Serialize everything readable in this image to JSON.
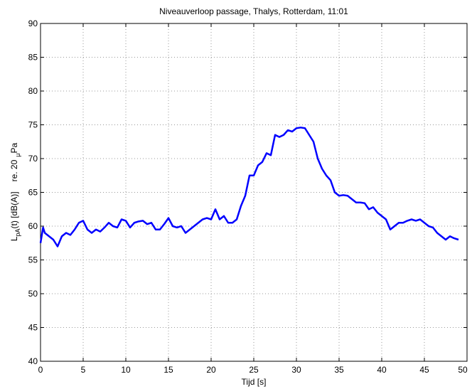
{
  "chart_data": {
    "type": "line",
    "title": "Niveauverloop passage, Thalys, Rotterdam, 11:01",
    "xlabel": "Tijd [s]",
    "ylabel": [
      "L",
      "pA",
      "(t) [dB(A)]",
      "re. 20",
      "μ",
      "Pa"
    ],
    "x": [
      0,
      0.3,
      0.5,
      1,
      1.5,
      2,
      2.5,
      3,
      3.5,
      4,
      4.5,
      5,
      5.5,
      6,
      6.5,
      7,
      7.5,
      8,
      8.5,
      9,
      9.5,
      10,
      10.5,
      11,
      11.5,
      12,
      12.5,
      13,
      13.5,
      14,
      14.5,
      15,
      15.5,
      16,
      16.5,
      17,
      17.5,
      18,
      18.5,
      19,
      19.5,
      20,
      20.5,
      21,
      21.5,
      22,
      22.5,
      23,
      23.5,
      24,
      24.5,
      25,
      25.5,
      26,
      26.5,
      27,
      27.5,
      28,
      28.5,
      29,
      29.5,
      30,
      30.5,
      31,
      31.5,
      32,
      32.5,
      33,
      33.5,
      34,
      34.5,
      35,
      35.5,
      36,
      36.5,
      37,
      37.5,
      38,
      38.5,
      39,
      39.5,
      40,
      40.5,
      41,
      41.5,
      42,
      42.5,
      43,
      43.5,
      44,
      44.5,
      45,
      45.5,
      46,
      46.5,
      47,
      47.5,
      48,
      48.5,
      49
    ],
    "series": [
      {
        "name": "LpA",
        "color": "#0000ff",
        "values": [
          57.5,
          59.8,
          59,
          58.5,
          58,
          57,
          58.5,
          59,
          58.7,
          59.5,
          60.5,
          60.8,
          59.5,
          59,
          59.5,
          59.2,
          59.8,
          60.5,
          60,
          59.8,
          61,
          60.8,
          59.8,
          60.5,
          60.7,
          60.8,
          60.3,
          60.5,
          59.5,
          59.5,
          60.3,
          61.2,
          60,
          59.8,
          60,
          59,
          59.5,
          60,
          60.5,
          61,
          61.2,
          61,
          62.5,
          61,
          61.5,
          60.5,
          60.5,
          61,
          63,
          64.5,
          67.5,
          67.5,
          69,
          69.5,
          70.8,
          70.5,
          73.5,
          73.2,
          73.5,
          74.2,
          74,
          74.5,
          74.6,
          74.5,
          73.5,
          72.5,
          70,
          68.5,
          67.5,
          66.8,
          65,
          64.5,
          64.6,
          64.5,
          64,
          63.5,
          63.5,
          63.4,
          62.5,
          62.8,
          62,
          61.5,
          61,
          59.5,
          60,
          60.5,
          60.5,
          60.8,
          61,
          60.8,
          61,
          60.5,
          60,
          59.8,
          59,
          58.5,
          58,
          58.5,
          58.2,
          58
        ]
      }
    ],
    "xlim": [
      0,
      50
    ],
    "xticks": [
      0,
      5,
      10,
      15,
      20,
      25,
      30,
      35,
      40,
      45,
      50
    ],
    "ylim": [
      40,
      90
    ],
    "yticks": [
      40,
      45,
      50,
      55,
      60,
      65,
      70,
      75,
      80,
      85,
      90
    ],
    "grid": true
  }
}
